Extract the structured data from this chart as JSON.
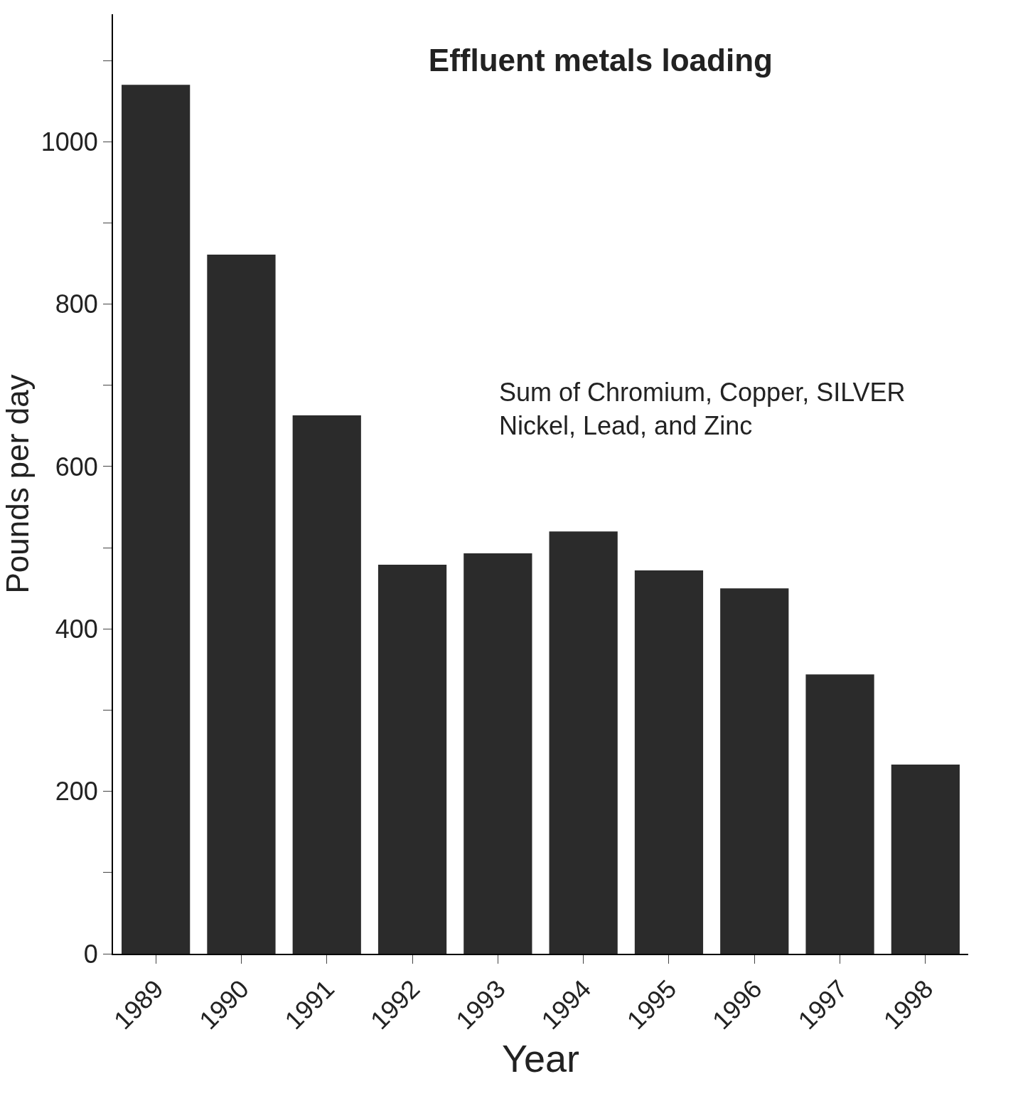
{
  "chart_data": {
    "type": "bar",
    "title": "Effluent metals loading",
    "xlabel": "Year",
    "ylabel": "Pounds per day",
    "categories": [
      "1989",
      "1990",
      "1991",
      "1992",
      "1993",
      "1994",
      "1995",
      "1996",
      "1997",
      "1998"
    ],
    "values": [
      1070,
      861,
      663,
      479,
      493,
      520,
      472,
      450,
      344,
      233
    ],
    "color": "#2b2b2b",
    "ylim": [
      0,
      1157
    ],
    "yticks": [
      0,
      {
        "value": 100,
        "label": null
      },
      200,
      {
        "value": 300,
        "label": null
      },
      400,
      {
        "value": 500,
        "label": null
      },
      600,
      {
        "value": 700,
        "label": null
      },
      800,
      {
        "value": 900,
        "label": null
      },
      1000,
      {
        "value": 1100,
        "label": null
      }
    ],
    "annotations": [
      "Sum of Chromium, Copper, SILVER\nNickel, Lead, and Zinc"
    ],
    "legend": false
  }
}
